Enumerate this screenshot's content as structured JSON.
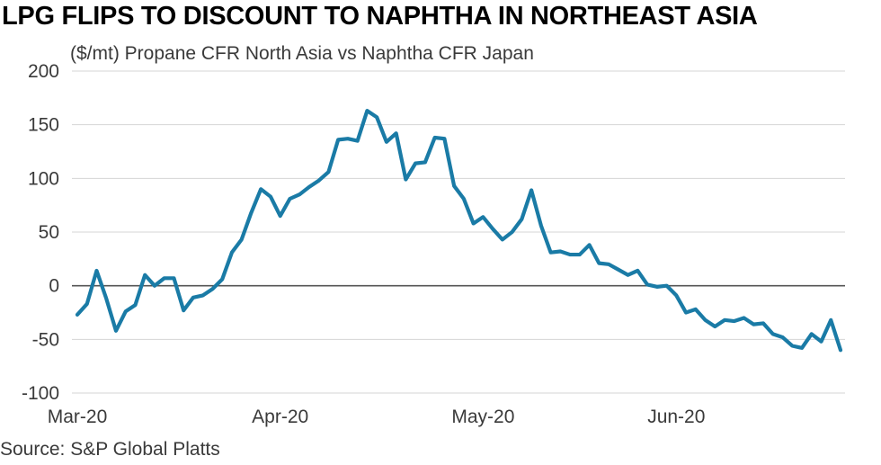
{
  "title": "LPG FLIPS TO DISCOUNT TO NAPHTHA IN NORTHEAST ASIA",
  "subtitle": "($/mt) Propane CFR North Asia vs Naphtha CFR Japan",
  "source": "Source: S&P Global Platts",
  "colors": {
    "line": "#1a7ba6",
    "grid": "#d4d4d4",
    "zero_line": "#555555"
  },
  "chart_data": {
    "type": "line",
    "title": "LPG FLIPS TO DISCOUNT TO NAPHTHA IN NORTHEAST ASIA",
    "ylabel": "($/mt) Propane CFR North Asia vs Naphtha CFR Japan",
    "xlabel": "",
    "ylim": [
      -100,
      200
    ],
    "yticks": [
      "200",
      "150",
      "100",
      "50",
      "0",
      "-50",
      "-100"
    ],
    "ytick_values": [
      200,
      150,
      100,
      50,
      0,
      -50,
      -100
    ],
    "xticks": [
      "Mar-20",
      "Apr-20",
      "May-20",
      "Jun-20"
    ],
    "xtick_positions": [
      0,
      21,
      42,
      62
    ],
    "grid": true,
    "series": [
      {
        "values": [
          -27,
          -17,
          14,
          -12,
          -42,
          -24,
          -18,
          10,
          0,
          7,
          7,
          -23,
          -11,
          -9,
          -3,
          6,
          31,
          43,
          68,
          90,
          83,
          65,
          81,
          85,
          92,
          98,
          106,
          136,
          137,
          135,
          163,
          157,
          134,
          142,
          99,
          114,
          115,
          138,
          137,
          93,
          81,
          58,
          64,
          53,
          43,
          50,
          62,
          89,
          56,
          31,
          32,
          29,
          29,
          38,
          21,
          20,
          15,
          10,
          14,
          1,
          -1,
          0,
          -9,
          -25,
          -22,
          -32,
          -38,
          -32,
          -33,
          -30,
          -36,
          -35,
          -45,
          -48,
          -56,
          -58,
          -45,
          -52,
          -32,
          -60
        ]
      }
    ]
  }
}
